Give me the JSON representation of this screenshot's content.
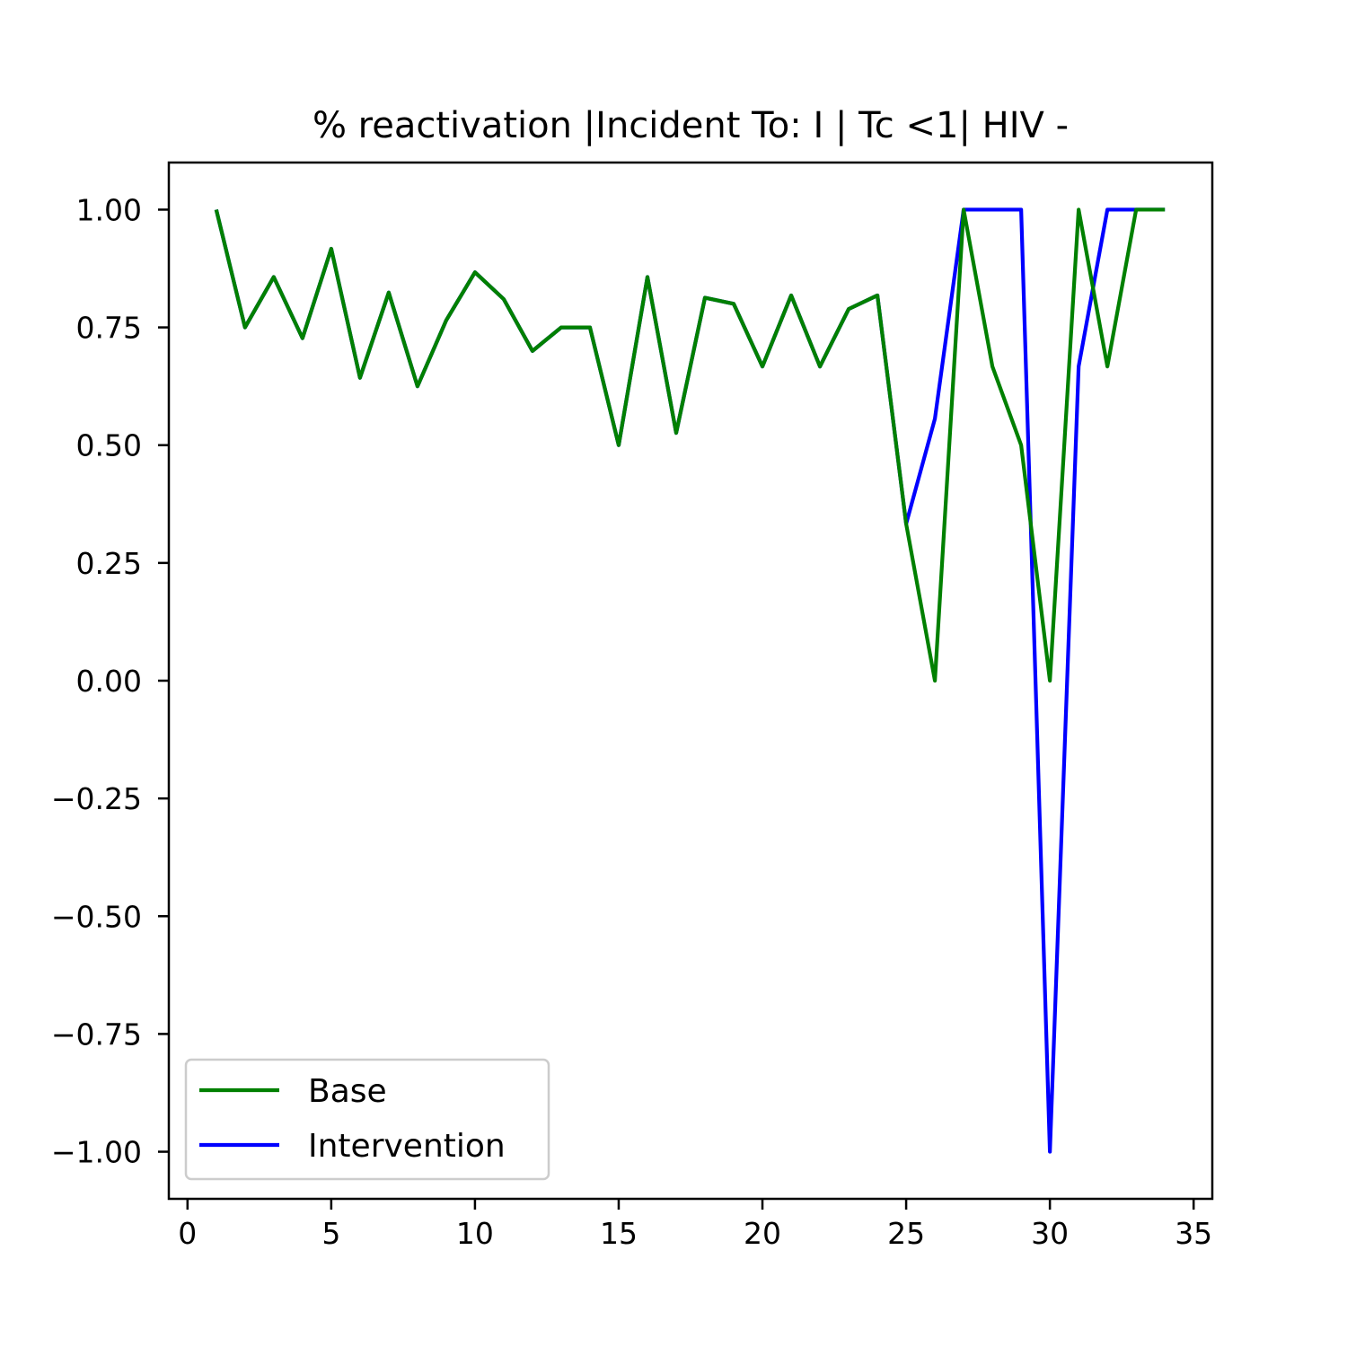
{
  "chart_data": {
    "type": "line",
    "title": "% reactivation |Incident To: I | Tc <1| HIV -",
    "xlabel": "",
    "ylabel": "",
    "xlim": [
      -0.65,
      35.65
    ],
    "ylim": [
      -1.1,
      1.1
    ],
    "x_ticks": [
      0,
      5,
      10,
      15,
      20,
      25,
      30,
      35
    ],
    "x_tick_labels": [
      "0",
      "5",
      "10",
      "15",
      "20",
      "25",
      "30",
      "35"
    ],
    "y_ticks": [
      1.0,
      0.75,
      0.5,
      0.25,
      0.0,
      -0.25,
      -0.5,
      -0.75,
      -1.0
    ],
    "y_tick_labels": [
      "1.00",
      "0.75",
      "0.50",
      "0.25",
      "0.00",
      "−0.25",
      "−0.50",
      "−0.75",
      "−1.00"
    ],
    "grid": false,
    "legend_position": "lower-left",
    "x": [
      1,
      2,
      3,
      4,
      5,
      6,
      7,
      8,
      9,
      10,
      11,
      12,
      13,
      14,
      15,
      16,
      17,
      18,
      19,
      20,
      21,
      22,
      23,
      24,
      25,
      26,
      27,
      28,
      29,
      30,
      31,
      32,
      33,
      34
    ],
    "series": [
      {
        "name": "Base",
        "color": "#008000",
        "values": [
          1.0,
          0.75,
          0.857,
          0.727,
          0.917,
          0.643,
          0.824,
          0.625,
          0.765,
          0.867,
          0.81,
          0.7,
          0.75,
          0.75,
          0.5,
          0.857,
          0.526,
          0.813,
          0.8,
          0.667,
          0.818,
          0.667,
          0.789,
          0.818,
          0.333,
          0.0,
          1.0,
          0.667,
          0.5,
          0.0,
          1.0,
          0.667,
          1.0,
          1.0
        ]
      },
      {
        "name": "Intervention",
        "color": "#0000ff",
        "values": [
          1.0,
          0.75,
          0.857,
          0.727,
          0.917,
          0.643,
          0.824,
          0.625,
          0.765,
          0.867,
          0.81,
          0.7,
          0.75,
          0.75,
          0.5,
          0.857,
          0.526,
          0.813,
          0.8,
          0.667,
          0.818,
          0.667,
          0.789,
          0.818,
          0.333,
          0.556,
          1.0,
          1.0,
          1.0,
          -1.0,
          0.667,
          1.0,
          1.0,
          1.0
        ]
      }
    ]
  }
}
